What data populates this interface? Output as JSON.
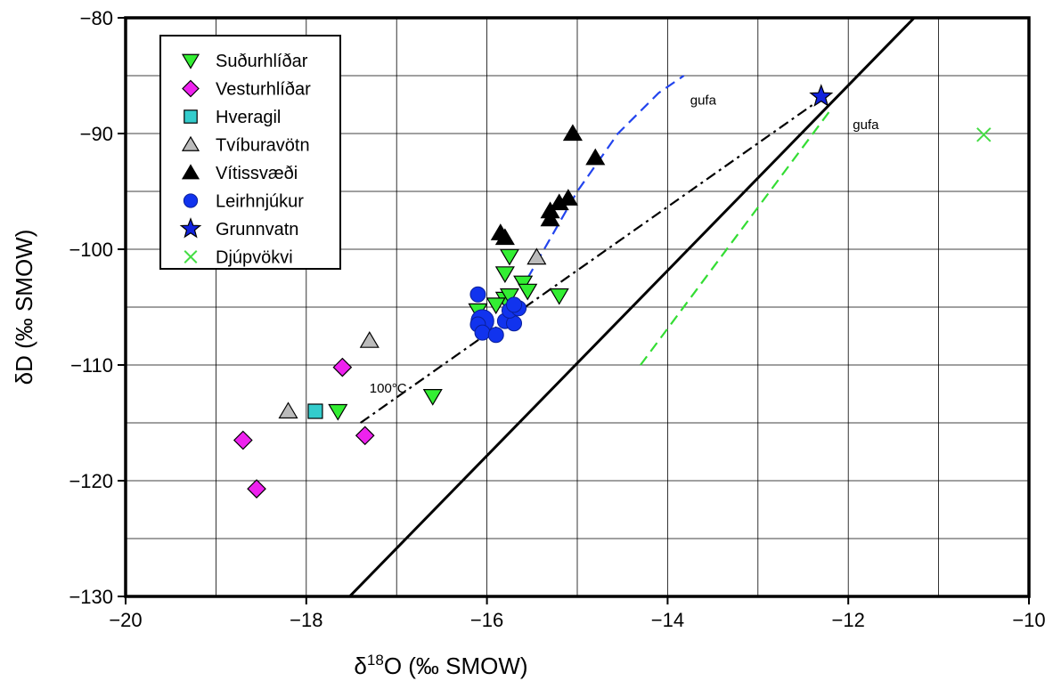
{
  "chart_data": {
    "type": "scatter",
    "xlabel_prefix": "δ",
    "xlabel_sup": "18",
    "xlabel_rest": "O (‰ SMOW)",
    "ylabel": "δD (‰ SMOW)",
    "xlim": [
      -20,
      -10
    ],
    "ylim": [
      -130,
      -80
    ],
    "x_ticks": [
      "−20",
      "−18",
      "−16",
      "−14",
      "−12",
      "−10"
    ],
    "y_ticks": [
      "−130",
      "−120",
      "−110",
      "−100",
      "−90",
      "−80"
    ],
    "x_tick_values": [
      -20,
      -18,
      -16,
      -14,
      -12,
      -10
    ],
    "y_tick_values": [
      -130,
      -120,
      -110,
      -100,
      -90,
      -80
    ],
    "x_grid": [
      -19,
      -17,
      -15,
      -13,
      -11
    ],
    "y_grid": [
      -125,
      -115,
      -105,
      -95,
      -85
    ],
    "grid": true,
    "legend_position": "top-left",
    "series": [
      {
        "name": "Suðurhlíðar",
        "marker": "triangle-down",
        "color": "#33ee33",
        "x": [
          -16.1,
          -15.8,
          -15.75,
          -15.8,
          -15.6,
          -15.2,
          -15.55,
          -16.6,
          -17.65,
          -15.9,
          -15.75
        ],
        "y": [
          -105.3,
          -102.1,
          -100.6,
          -104.3,
          -102.9,
          -104.0,
          -103.6,
          -112.7,
          -114.0,
          -104.8,
          -104.0
        ]
      },
      {
        "name": "Vesturhlíðar",
        "marker": "diamond",
        "color": "#ee22ee",
        "x": [
          -17.6,
          -18.7,
          -18.55,
          -17.35
        ],
        "y": [
          -110.2,
          -116.5,
          -120.7,
          -116.1
        ]
      },
      {
        "name": "Hveragil",
        "marker": "square",
        "color": "#33cccc",
        "x": [
          -17.9
        ],
        "y": [
          -114.0
        ]
      },
      {
        "name": "Tvíburavötn",
        "marker": "triangle-up",
        "color": "#bbbbbb",
        "x": [
          -18.2,
          -17.3,
          -15.45
        ],
        "y": [
          -114.0,
          -107.9,
          -100.7
        ]
      },
      {
        "name": "Vítissvæði",
        "marker": "triangle-up",
        "color": "#000000",
        "x": [
          -15.05,
          -14.8,
          -15.1,
          -15.2,
          -15.3,
          -15.3,
          -15.85,
          -15.8
        ],
        "y": [
          -90.0,
          -92.1,
          -95.6,
          -96.0,
          -96.7,
          -97.4,
          -98.6,
          -99.0
        ]
      },
      {
        "name": "Leirhnjúkur",
        "marker": "circle",
        "color": "#1133ee",
        "x": [
          -16.1,
          -16.05,
          -16.1,
          -16.05,
          -15.9,
          -15.8,
          -15.7,
          -15.75,
          -15.65,
          -15.7
        ],
        "y": [
          -103.9,
          -106.2,
          -106.5,
          -107.2,
          -107.4,
          -106.2,
          -106.4,
          -105.3,
          -105.1,
          -104.8
        ],
        "big": [
          false,
          true,
          false,
          false,
          false,
          false,
          false,
          false,
          false,
          false
        ]
      },
      {
        "name": "Grunnvatn",
        "marker": "star",
        "color": "#1122dd",
        "x": [
          -12.3
        ],
        "y": [
          -86.8
        ]
      },
      {
        "name": "Djúpvökvi",
        "marker": "x",
        "color": "#44dd44",
        "x": [
          -10.5
        ],
        "y": [
          -90.1
        ]
      }
    ],
    "lines": [
      {
        "style": "solid",
        "color": "#000000",
        "x": [
          -17.52,
          -11.27
        ],
        "y": [
          -130,
          -80
        ]
      },
      {
        "style": "dashdot",
        "color": "#000000",
        "x": [
          -17.4,
          -12.3
        ],
        "y": [
          -115.0,
          -87.0
        ]
      },
      {
        "style": "dashed",
        "color": "#2244ee",
        "x": [
          -15.55,
          -15.0,
          -14.55,
          -14.1,
          -13.82
        ],
        "y": [
          -102.5,
          -95.0,
          -90.0,
          -86.5,
          -85.0
        ]
      },
      {
        "style": "dashed",
        "color": "#33dd33",
        "x": [
          -14.3,
          -12.2
        ],
        "y": [
          -110.0,
          -88.0
        ]
      }
    ],
    "annotations": [
      {
        "text": "gufa",
        "x": -13.75,
        "y": -87.5
      },
      {
        "text": "gufa",
        "x": -11.95,
        "y": -89.6
      },
      {
        "text": "100°C",
        "x": -17.3,
        "y": -112.4
      }
    ]
  }
}
